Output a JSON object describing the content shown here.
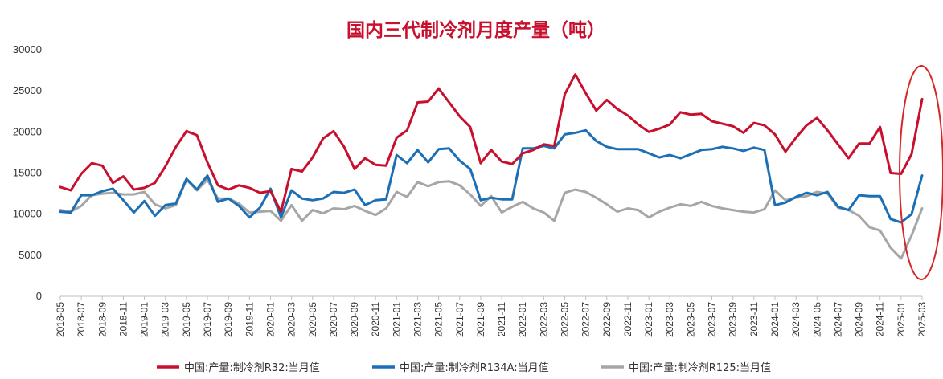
{
  "chart_data": {
    "type": "line",
    "title": "国内三代制冷剂月度产量（吨）",
    "ylim": [
      0,
      30000
    ],
    "yticks": [
      "0",
      "5000",
      "10000",
      "15000",
      "20000",
      "25000",
      "30000"
    ],
    "x": [
      "2018-05",
      "2018-06",
      "2018-07",
      "2018-08",
      "2018-09",
      "2018-10",
      "2018-11",
      "2018-12",
      "2019-01",
      "2019-02",
      "2019-03",
      "2019-04",
      "2019-05",
      "2019-06",
      "2019-07",
      "2019-08",
      "2019-09",
      "2019-10",
      "2019-11",
      "2019-12",
      "2020-01",
      "2020-02",
      "2020-03",
      "2020-04",
      "2020-05",
      "2020-06",
      "2020-07",
      "2020-08",
      "2020-09",
      "2020-10",
      "2020-11",
      "2020-12",
      "2021-01",
      "2021-02",
      "2021-03",
      "2021-04",
      "2021-05",
      "2021-06",
      "2021-07",
      "2021-08",
      "2021-09",
      "2021-10",
      "2021-11",
      "2021-12",
      "2022-01",
      "2022-02",
      "2022-03",
      "2022-04",
      "2022-05",
      "2022-06",
      "2022-07",
      "2022-08",
      "2022-09",
      "2022-10",
      "2022-11",
      "2022-12",
      "2023-01",
      "2023-02",
      "2023-03",
      "2023-04",
      "2023-05",
      "2023-06",
      "2023-07",
      "2023-08",
      "2023-09",
      "2023-10",
      "2023-11",
      "2023-12",
      "2024-01",
      "2024-02",
      "2024-03",
      "2024-04",
      "2024-05",
      "2024-06",
      "2024-07",
      "2024-08",
      "2024-09",
      "2024-10",
      "2024-11",
      "2024-12",
      "2025-01",
      "2025-02",
      "2025-03"
    ],
    "xtick_labels": [
      "2018-05",
      "2018-07",
      "2018-09",
      "2018-11",
      "2019-01",
      "2019-03",
      "2019-05",
      "2019-07",
      "2019-09",
      "2019-11",
      "2020-01",
      "2020-03",
      "2020-05",
      "2020-07",
      "2020-09",
      "2020-11",
      "2021-01",
      "2021-03",
      "2021-05",
      "2021-07",
      "2021-09",
      "2021-11",
      "2022-01",
      "2022-03",
      "2022-05",
      "2022-07",
      "2022-09",
      "2022-11",
      "2023-01",
      "2023-03",
      "2023-05",
      "2023-07",
      "2023-09",
      "2023-11",
      "2024-01",
      "2024-03",
      "2024-05",
      "2024-07",
      "2024-09",
      "2024-11",
      "2025-01",
      "2025-03"
    ],
    "grid": false,
    "legend_position": "bottom",
    "series": [
      {
        "name": "中国:产量:制冷剂R32:当月值",
        "color": "#c8102e",
        "values": [
          13300,
          12900,
          14900,
          16200,
          15900,
          13800,
          14600,
          13000,
          13200,
          13800,
          15800,
          18200,
          20100,
          19600,
          16300,
          13500,
          13000,
          13500,
          13200,
          12600,
          12800,
          10300,
          15500,
          15200,
          16900,
          19200,
          20100,
          18200,
          15500,
          16800,
          16000,
          15900,
          19300,
          20200,
          23600,
          23700,
          25300,
          23600,
          21900,
          20600,
          16200,
          17800,
          16400,
          16100,
          17400,
          17800,
          18500,
          18300,
          24600,
          27000,
          24700,
          22600,
          23900,
          22800,
          22000,
          20900,
          20000,
          20400,
          20900,
          22400,
          22100,
          22200,
          21300,
          21000,
          20700,
          19900,
          21100,
          20800,
          19700,
          17600,
          19300,
          20800,
          21700,
          20200,
          18500,
          16800,
          18600,
          18600,
          20600,
          15000,
          14900,
          17300,
          24000
        ]
      },
      {
        "name": "中国:产量:制冷剂R134A:当月值",
        "color": "#1c6fb5",
        "values": [
          10300,
          10200,
          12300,
          12300,
          12800,
          13100,
          11700,
          10200,
          11600,
          9800,
          11100,
          11300,
          14300,
          13000,
          14700,
          11500,
          11900,
          11000,
          9600,
          10800,
          13100,
          9600,
          12900,
          11900,
          11700,
          11900,
          12700,
          12600,
          13000,
          11100,
          11700,
          11800,
          17200,
          16200,
          17800,
          16300,
          17900,
          18000,
          16500,
          15500,
          11700,
          12000,
          11800,
          11800,
          18000,
          18000,
          18300,
          18000,
          19700,
          19900,
          20200,
          18900,
          18200,
          17900,
          17900,
          17900,
          17400,
          16900,
          17200,
          16800,
          17300,
          17800,
          17900,
          18200,
          18000,
          17700,
          18100,
          17800,
          11100,
          11400,
          12100,
          12600,
          12300,
          12700,
          10900,
          10500,
          12300,
          12200,
          12200,
          9400,
          9000,
          10000,
          14700
        ]
      },
      {
        "name": "中国:产量:制冷剂R125:当月值",
        "color": "#a6a6a6",
        "values": [
          10500,
          10300,
          11000,
          12300,
          12500,
          12600,
          12400,
          12400,
          12700,
          11200,
          10700,
          11100,
          14200,
          12900,
          14200,
          11900,
          11900,
          11300,
          10200,
          10300,
          10400,
          9200,
          11100,
          9200,
          10500,
          10100,
          10700,
          10600,
          11000,
          10400,
          9900,
          10700,
          12700,
          12100,
          13900,
          13400,
          13900,
          14000,
          13500,
          12400,
          11000,
          12200,
          10200,
          10900,
          11500,
          10700,
          10200,
          9200,
          12600,
          13000,
          12700,
          12000,
          11200,
          10300,
          10700,
          10500,
          9600,
          10300,
          10800,
          11200,
          11000,
          11500,
          11000,
          10700,
          10500,
          10300,
          10200,
          10600,
          12900,
          11700,
          12000,
          12200,
          12700,
          12500,
          10800,
          10500,
          9800,
          8400,
          8000,
          5900,
          4600,
          7400,
          10700
        ]
      }
    ],
    "annotation": {
      "type": "ellipse",
      "color": "#d62728",
      "around": "2025-03"
    }
  }
}
